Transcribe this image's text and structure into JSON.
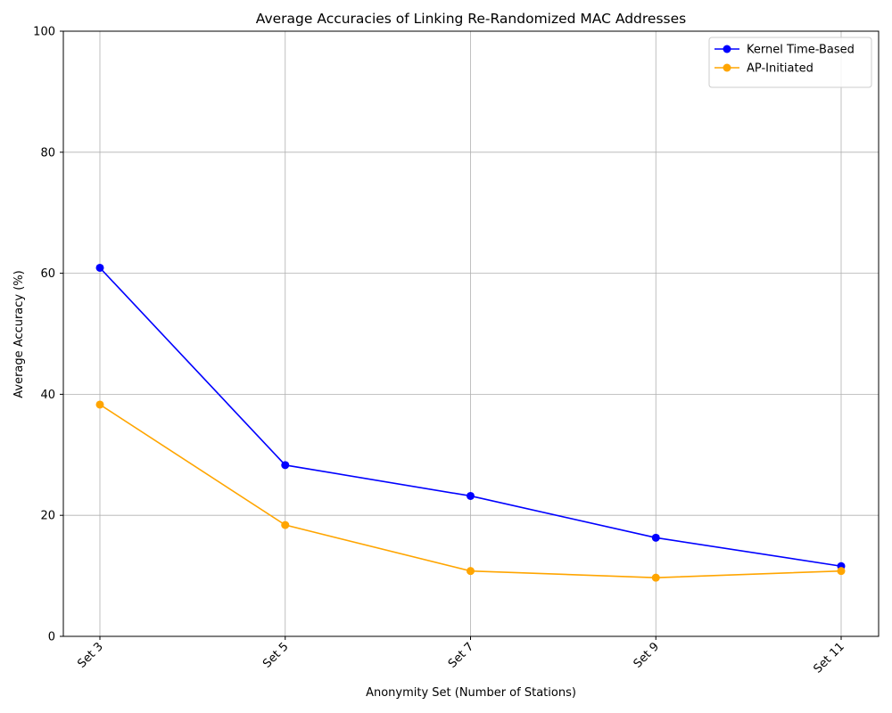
{
  "chart_data": {
    "type": "line",
    "title": "Average Accuracies of Linking Re-Randomized MAC Addresses",
    "xlabel": "Anonymity Set (Number of Stations)",
    "ylabel": "Average Accuracy (%)",
    "categories": [
      "Set 3",
      "Set 5",
      "Set 7",
      "Set 9",
      "Set 11"
    ],
    "ylim": [
      0,
      100
    ],
    "yticks": [
      0,
      20,
      40,
      60,
      80,
      100
    ],
    "grid": true,
    "legend_position": "top-right",
    "series": [
      {
        "name": "Kernel Time-Based",
        "color": "#0000ff",
        "values": [
          60.9,
          28.3,
          23.2,
          16.3,
          11.6
        ]
      },
      {
        "name": "AP-Initiated",
        "color": "#ffa500",
        "values": [
          38.3,
          18.4,
          10.8,
          9.7,
          10.8
        ]
      }
    ]
  }
}
